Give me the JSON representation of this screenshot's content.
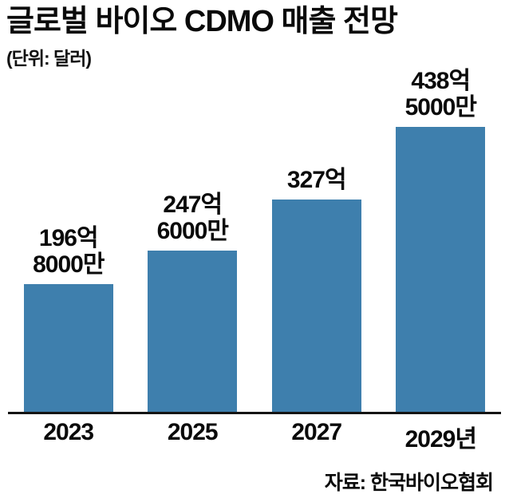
{
  "chart_data": {
    "type": "bar",
    "title": "글로벌 바이오 CDMO 매출 전망",
    "subtitle": "(단위: 달러)",
    "unit": "달러",
    "categories": [
      "2023",
      "2025",
      "2027",
      "2029년"
    ],
    "values_eok": [
      196.8,
      247.6,
      327,
      438.5
    ],
    "values_usd": [
      19680000000,
      24760000000,
      32700000000,
      43850000000
    ],
    "value_labels": [
      "196억\n8000만",
      "247억\n6000만",
      "327억",
      "438억\n5000만"
    ],
    "ylim": [
      0,
      440
    ],
    "bar_color": "#3e7fad",
    "grid": false,
    "legend": false,
    "source": "자료: 한국바이오협회"
  }
}
